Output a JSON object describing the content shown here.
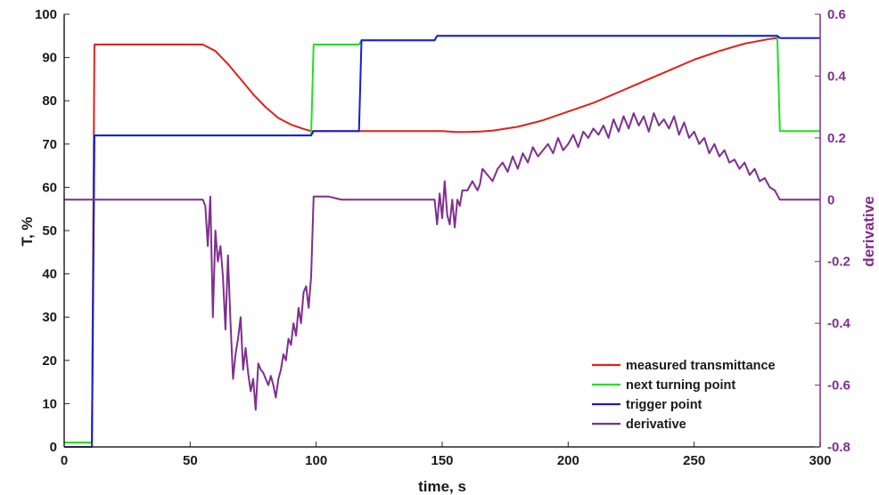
{
  "chart_data": {
    "type": "line",
    "title": "",
    "xlabel": "time, s",
    "ylabel": "T, %",
    "ylabel_right": "derivative",
    "xlim": [
      0,
      300
    ],
    "ylim": [
      0,
      100
    ],
    "ylim_right": [
      -0.8,
      0.6
    ],
    "xticks": [
      "0",
      "50",
      "100",
      "150",
      "200",
      "250",
      "300"
    ],
    "yticks": [
      "0",
      "10",
      "20",
      "30",
      "40",
      "50",
      "60",
      "70",
      "80",
      "90",
      "100"
    ],
    "yticks_right": [
      "-0.8",
      "-0.6",
      "-0.4",
      "-0.2",
      "0",
      "0.2",
      "0.4",
      "0.6"
    ],
    "grid": false,
    "legend_position": "bottom-right",
    "series": [
      {
        "name": "measured transmittance",
        "axis": "left",
        "color": "#e0201b",
        "x": [
          0,
          11,
          12,
          20,
          40,
          55,
          60,
          65,
          70,
          75,
          80,
          85,
          90,
          95,
          98,
          100,
          110,
          130,
          150,
          155,
          160,
          165,
          170,
          180,
          190,
          200,
          210,
          220,
          230,
          240,
          250,
          260,
          270,
          280,
          283
        ],
        "y": [
          1,
          1,
          93,
          93,
          93,
          93,
          91.5,
          88.5,
          85,
          81.5,
          78.5,
          76,
          74.5,
          73.5,
          73,
          73,
          73,
          73,
          73,
          72.8,
          72.8,
          72.9,
          73.1,
          74,
          75.5,
          77.5,
          79.5,
          82,
          84.5,
          87,
          89.5,
          91.5,
          93.2,
          94.3,
          94.5
        ]
      },
      {
        "name": "next turning point",
        "axis": "left",
        "color": "#22e022",
        "x": [
          0,
          11,
          12,
          98,
          99,
          117,
          118,
          147,
          148,
          283,
          284,
          300
        ],
        "y": [
          1,
          1,
          72,
          72,
          93,
          93,
          94,
          94,
          95,
          95,
          73,
          73
        ]
      },
      {
        "name": "trigger point",
        "axis": "left",
        "color": "#1a1ad6",
        "x": [
          0,
          11,
          12,
          98,
          99,
          117,
          118,
          147,
          148,
          283,
          284,
          300
        ],
        "y": [
          0,
          0,
          72,
          72,
          73,
          73,
          94,
          94,
          95,
          95,
          94.5,
          94.5
        ]
      },
      {
        "name": "derivative",
        "axis": "right",
        "color": "#7e2f8e",
        "x": [
          0,
          55,
          56,
          57,
          58,
          59,
          60,
          61,
          62,
          63,
          64,
          65,
          66,
          67,
          68,
          69,
          70,
          71,
          72,
          73,
          74,
          75,
          76,
          77,
          78,
          79,
          80,
          81,
          82,
          83,
          84,
          85,
          86,
          87,
          88,
          89,
          90,
          91,
          92,
          93,
          94,
          95,
          96,
          97,
          98,
          99,
          100,
          105,
          110,
          115,
          120,
          130,
          140,
          147,
          148,
          149,
          150,
          151,
          152,
          153,
          154,
          155,
          156,
          157,
          158,
          160,
          162,
          164,
          165,
          166,
          168,
          170,
          172,
          174,
          176,
          178,
          180,
          182,
          184,
          186,
          188,
          190,
          192,
          194,
          196,
          198,
          200,
          202,
          204,
          206,
          208,
          210,
          212,
          214,
          216,
          218,
          220,
          222,
          224,
          226,
          228,
          230,
          232,
          234,
          236,
          238,
          240,
          242,
          244,
          246,
          248,
          250,
          252,
          254,
          256,
          258,
          260,
          262,
          264,
          266,
          268,
          270,
          272,
          274,
          276,
          278,
          280,
          282,
          284,
          290,
          300
        ],
        "y": [
          0,
          0,
          -0.02,
          -0.15,
          0.01,
          -0.38,
          -0.1,
          -0.2,
          -0.15,
          -0.25,
          -0.42,
          -0.18,
          -0.4,
          -0.58,
          -0.5,
          -0.45,
          -0.38,
          -0.55,
          -0.48,
          -0.56,
          -0.62,
          -0.58,
          -0.68,
          -0.53,
          -0.55,
          -0.56,
          -0.58,
          -0.6,
          -0.57,
          -0.6,
          -0.64,
          -0.58,
          -0.55,
          -0.5,
          -0.52,
          -0.45,
          -0.47,
          -0.4,
          -0.44,
          -0.35,
          -0.4,
          -0.3,
          -0.28,
          -0.35,
          -0.25,
          0.01,
          0.01,
          0.01,
          0.0,
          0.0,
          0.0,
          0.0,
          0.0,
          0.0,
          -0.08,
          0.02,
          -0.06,
          0.06,
          -0.05,
          -0.08,
          0.0,
          -0.09,
          0.0,
          -0.02,
          0.03,
          0.03,
          0.06,
          0.03,
          0.05,
          0.1,
          0.08,
          0.06,
          0.1,
          0.12,
          0.09,
          0.14,
          0.1,
          0.15,
          0.12,
          0.17,
          0.14,
          0.16,
          0.18,
          0.15,
          0.2,
          0.16,
          0.18,
          0.21,
          0.17,
          0.22,
          0.2,
          0.23,
          0.21,
          0.24,
          0.2,
          0.26,
          0.22,
          0.27,
          0.23,
          0.28,
          0.24,
          0.27,
          0.22,
          0.28,
          0.24,
          0.26,
          0.23,
          0.27,
          0.21,
          0.25,
          0.2,
          0.22,
          0.18,
          0.2,
          0.15,
          0.18,
          0.14,
          0.16,
          0.12,
          0.13,
          0.1,
          0.12,
          0.08,
          0.1,
          0.06,
          0.07,
          0.04,
          0.03,
          0.0,
          0.0,
          0.0
        ]
      }
    ],
    "legend": [
      {
        "label": "measured transmittance",
        "color": "#e0201b"
      },
      {
        "label": "next turning point",
        "color": "#22e022"
      },
      {
        "label": "trigger point",
        "color": "#1a1ad6"
      },
      {
        "label": "derivative",
        "color": "#7e2f8e"
      }
    ]
  }
}
